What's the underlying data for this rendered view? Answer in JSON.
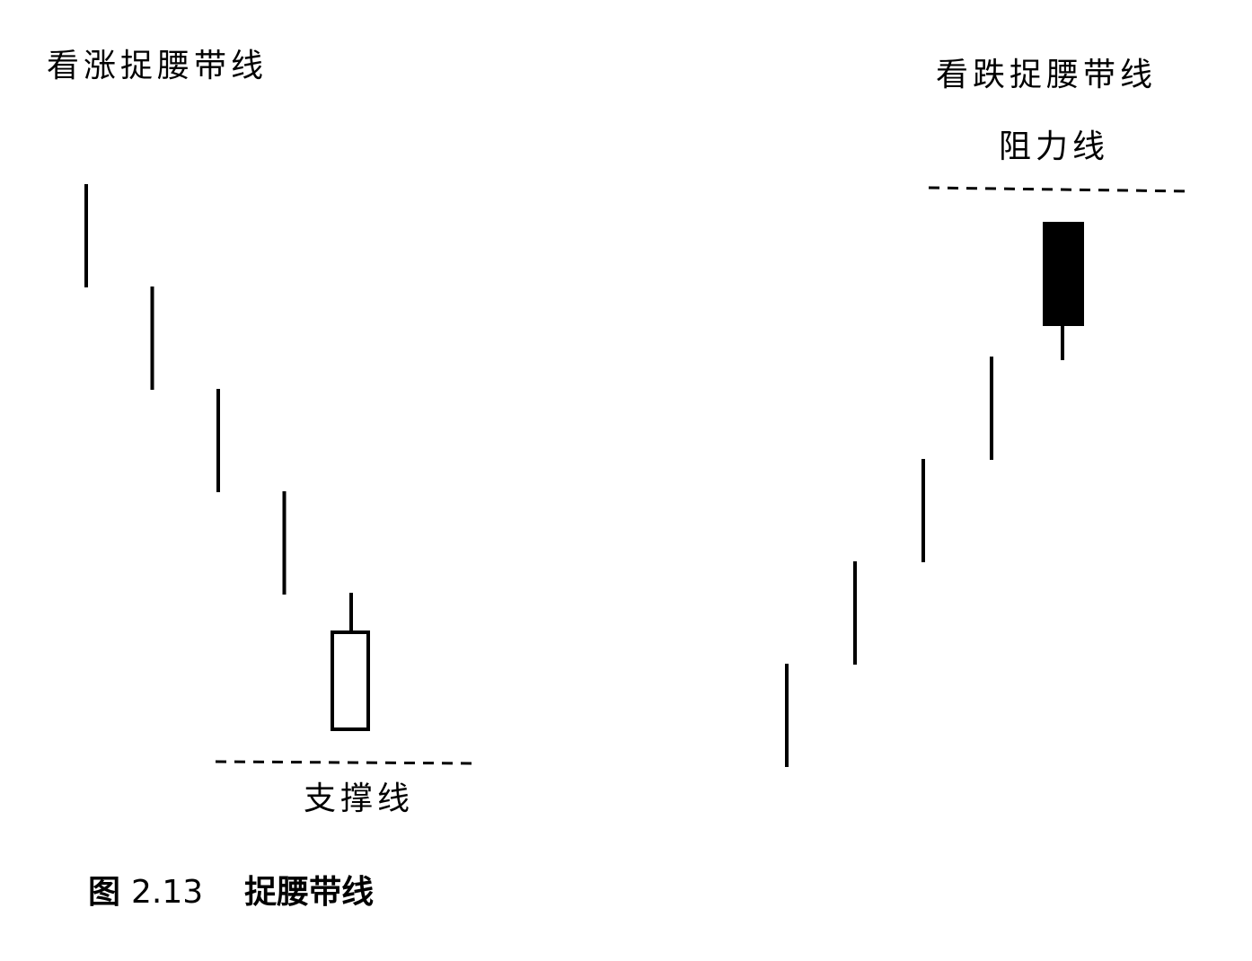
{
  "labels": {
    "bullish_title": "看涨捉腰带线",
    "bearish_title": "看跌捉腰带线",
    "resistance": "阻力线",
    "support": "支撑线"
  },
  "caption": {
    "prefix": "图",
    "number": "2.13",
    "title": "捉腰带线"
  },
  "colors": {
    "ink": "#000000",
    "background": "#ffffff"
  },
  "patterns": {
    "bullish": {
      "trend": "down",
      "prior_bars": 4,
      "belt_candle": "white",
      "reference_line": "support"
    },
    "bearish": {
      "trend": "up",
      "prior_bars": 4,
      "belt_candle": "black",
      "reference_line": "resistance"
    }
  }
}
